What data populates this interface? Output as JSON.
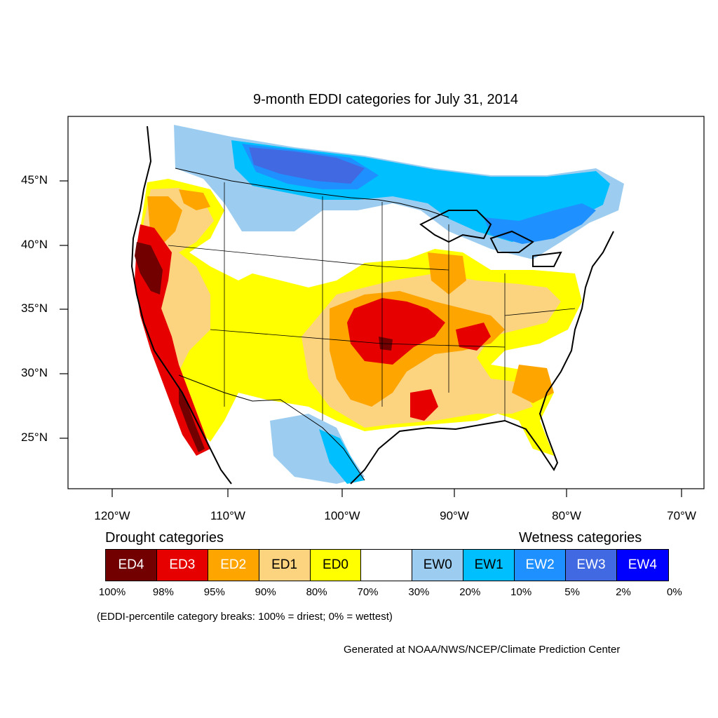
{
  "title": "9-month EDDI categories for July 31, 2014",
  "lat_labels": [
    "45°N",
    "40°N",
    "35°N",
    "30°N",
    "25°N"
  ],
  "lon_labels": [
    "120°W",
    "110°W",
    "100°W",
    "90°W",
    "80°W",
    "70°W"
  ],
  "legend": {
    "drought_title": "Drought categories",
    "wetness_title": "Wetness categories",
    "categories": [
      {
        "label": "ED4",
        "color": "#730000",
        "text_color": "#ffffff"
      },
      {
        "label": "ED3",
        "color": "#e60000",
        "text_color": "#ffffff"
      },
      {
        "label": "ED2",
        "color": "#ffa500",
        "text_color": "#ffffff"
      },
      {
        "label": "ED1",
        "color": "#fcd37f",
        "text_color": "#000000"
      },
      {
        "label": "ED0",
        "color": "#ffff00",
        "text_color": "#000000"
      },
      {
        "label": "",
        "color": "#ffffff",
        "text_color": "#000000"
      },
      {
        "label": "EW0",
        "color": "#9ccdf0",
        "text_color": "#000000"
      },
      {
        "label": "EW1",
        "color": "#00bfff",
        "text_color": "#000000"
      },
      {
        "label": "EW2",
        "color": "#1e90ff",
        "text_color": "#ffffff"
      },
      {
        "label": "EW3",
        "color": "#4169e1",
        "text_color": "#ffffff"
      },
      {
        "label": "EW4",
        "color": "#0000ff",
        "text_color": "#ffffff"
      }
    ],
    "breaks": [
      "100%",
      "98%",
      "95%",
      "90%",
      "80%",
      "70%",
      "30%",
      "20%",
      "10%",
      "5%",
      "2%",
      "0%"
    ]
  },
  "note": "(EDDI-percentile category breaks: 100% = driest; 0% = wettest)",
  "credit": "Generated at NOAA/NWS/NCEP/Climate Prediction Center"
}
